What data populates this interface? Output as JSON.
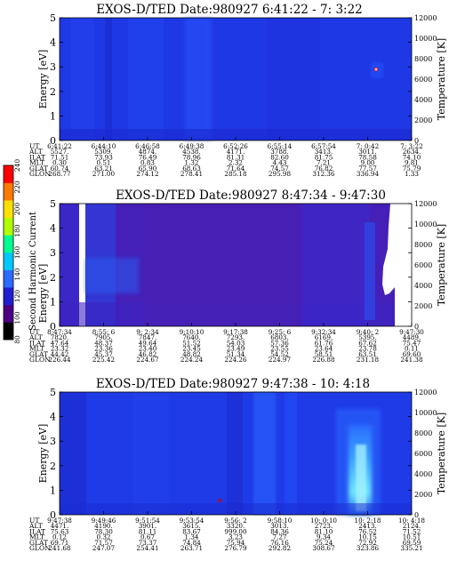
{
  "colorbar": {
    "label": "Second Harmonic Current",
    "ticks": [
      "240",
      "220",
      "200",
      "180",
      "160",
      "140",
      "120",
      "100",
      "80"
    ],
    "colors": [
      "#000000",
      "#4b0082",
      "#1f1fd0",
      "#2a6cff",
      "#00c8ff",
      "#00ff90",
      "#b0ff00",
      "#ffe000",
      "#ff7a00",
      "#ff0000"
    ]
  },
  "chart_data": [
    {
      "type": "heatmap",
      "title": "EXOS-D/TED   Date:980927  6:41:22 - 7: 3:22",
      "ylabel": "Energy [eV]",
      "y2label": "Temperature [K]",
      "ylim": [
        0,
        5
      ],
      "y2lim": [
        0,
        12000
      ],
      "yticks": [
        "0",
        "1",
        "2",
        "3",
        "4",
        "5"
      ],
      "y2ticks": [
        "0",
        "2000",
        "4000",
        "6000",
        "8000",
        "10000",
        "12000"
      ],
      "table_labels": [
        "UT",
        "ALT",
        "ILAT",
        "MLT",
        "GLAT",
        "GLON"
      ],
      "table": [
        [
          "6:41:22",
          "6:44:10",
          "6:46:58",
          "6:49:38",
          "6:52:26",
          "6:55:14",
          "6:57:54",
          "7: 0:42",
          "7: 3:22"
        ],
        [
          "5527.",
          "5309.",
          "4874.",
          "4538.",
          "4171.",
          "3788.",
          "3413.",
          "3011.",
          "2634."
        ],
        [
          "71.51",
          "73.93",
          "76.49",
          "78.96",
          "81.31",
          "82.60",
          "81.75",
          "78.58",
          "74.10"
        ],
        [
          "0.30",
          "0.51",
          "0.83",
          "1.32",
          "2.32",
          "4.43",
          "7.21",
          "9.00",
          "9.81"
        ],
        [
          "60.74",
          "63.21",
          "65.90",
          "68.63",
          "71.64",
          "74.57",
          "76.82",
          "77.57",
          "75.79"
        ],
        [
          "268.77",
          "271.00",
          "274.12",
          "278.41",
          "285.18",
          "295.98",
          "312.36",
          "336.94",
          "1.33"
        ]
      ]
    },
    {
      "type": "heatmap",
      "title": "EXOS-D/TED   Date:980927  8:47:34 - 9:47:30",
      "ylabel": "Energy [eV]",
      "y2label": "Temperature [K]",
      "ylim": [
        0,
        5
      ],
      "y2lim": [
        0,
        12000
      ],
      "yticks": [
        "0",
        "1",
        "2",
        "3",
        "4",
        "5"
      ],
      "y2ticks": [
        "0",
        "2000",
        "4000",
        "6000",
        "8000",
        "10000",
        "12000"
      ],
      "table_labels": [
        "UT",
        "ALT",
        "ILAT",
        "MLT",
        "GLAT",
        "GLON"
      ],
      "table": [
        [
          "8:47:34",
          "8:55: 6",
          "9: 2:34",
          "9:10:10",
          "9:17:38",
          "9:25: 6",
          "9:32:34",
          "9:40: 2",
          "9:47:30"
        ],
        [
          "7820.",
          "7905.",
          "7847.",
          "7640.",
          "7293.",
          "6803.",
          "6169.",
          "5395.",
          "4489."
        ],
        [
          "47.64",
          "48.37",
          "49.64",
          "51.52",
          "54.03",
          "57.36",
          "61.76",
          "67.62",
          "75.47"
        ],
        [
          "23.32",
          "23.36",
          "23.40",
          "23.45",
          "23.49",
          "23.55",
          "23.64",
          "23.78",
          "0.11"
        ],
        [
          "44.42",
          "45.37",
          "46.82",
          "48.82",
          "51.34",
          "54.52",
          "58.51",
          "63.51",
          "69.60"
        ],
        [
          "226.44",
          "225.42",
          "224.67",
          "224.24",
          "224.26",
          "224.97",
          "226.88",
          "231.18",
          "241.38"
        ]
      ]
    },
    {
      "type": "heatmap",
      "title": "EXOS-D/TED   Date:980927  9:47:38 - 10: 4:18",
      "ylabel": "Energy [eV]",
      "y2label": "Temperature [K]",
      "ylim": [
        0,
        5
      ],
      "y2lim": [
        0,
        12000
      ],
      "yticks": [
        "0",
        "1",
        "2",
        "3",
        "4",
        "5"
      ],
      "y2ticks": [
        "0",
        "2000",
        "4000",
        "6000",
        "8000",
        "10000",
        "12000"
      ],
      "table_labels": [
        "UT",
        "ALT",
        "ILAT",
        "MLT",
        "GLAT",
        "GLON"
      ],
      "table": [
        [
          "9:47:38",
          "9:49:46",
          "9:51:54",
          "9:53:54",
          "9:56: 2",
          "9:58:10",
          "10: 0:10",
          "10: 2:18",
          "10: 4:18"
        ],
        [
          "4471.",
          "4190.",
          "3901.",
          "3615.",
          "3320.",
          "3013.",
          "2723.",
          "2413.",
          "2124."
        ],
        [
          "75.63",
          "78.30",
          "81.11",
          "83.67",
          "999.00",
          "84.36",
          "81.10",
          "76.52",
          "71.52"
        ],
        [
          "0.12",
          "0.32",
          "0.67",
          "1.34",
          "3.23",
          "7.27",
          "9.34",
          "10.15",
          "10.51"
        ],
        [
          "69.71",
          "71.57",
          "73.37",
          "74.84",
          "75.94",
          "76.16",
          "75.24",
          "72.92",
          "69.59"
        ],
        [
          "241.68",
          "247.07",
          "254.41",
          "263.71",
          "276.79",
          "292.82",
          "308.67",
          "323.86",
          "335.21"
        ]
      ]
    }
  ]
}
